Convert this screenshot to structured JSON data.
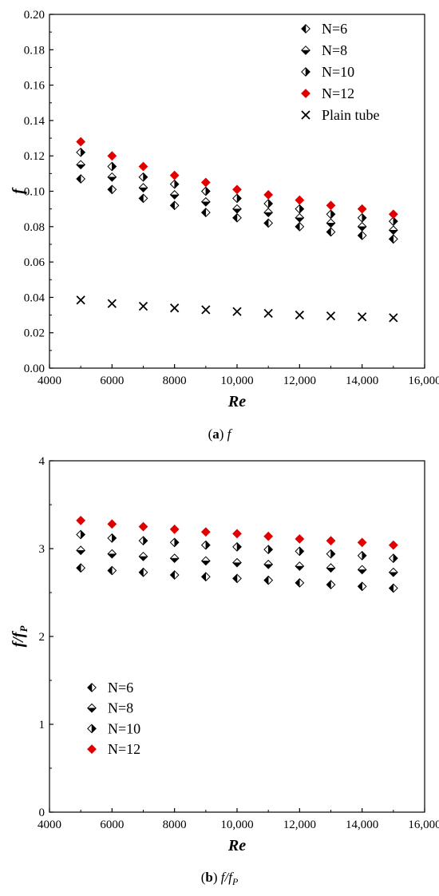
{
  "chart_data": [
    {
      "type": "scatter",
      "panel": "a",
      "caption": {
        "letter": "a",
        "text": "f"
      },
      "xlabel": "Re",
      "ylabel": "f",
      "xlim": [
        4000,
        16000
      ],
      "ylim": [
        0,
        0.2
      ],
      "x_ticks": [
        4000,
        6000,
        8000,
        10000,
        12000,
        14000,
        16000
      ],
      "x_tick_labels": [
        "4000",
        "6000",
        "8000",
        "10,000",
        "12,000",
        "14,000",
        "16,000"
      ],
      "y_ticks": [
        0,
        0.02,
        0.04,
        0.06,
        0.08,
        0.1,
        0.12,
        0.14,
        0.16,
        0.18,
        0.2
      ],
      "y_tick_labels": [
        "0.00",
        "0.02",
        "0.04",
        "0.06",
        "0.08",
        "0.10",
        "0.12",
        "0.14",
        "0.16",
        "0.18",
        "0.20"
      ],
      "legend_position": "top-right",
      "x": [
        5000,
        6000,
        7000,
        8000,
        9000,
        10000,
        11000,
        12000,
        13000,
        14000,
        15000
      ],
      "series": [
        {
          "name": "N=6",
          "marker": "diamond-left",
          "color": "#000000",
          "values": [
            0.107,
            0.101,
            0.096,
            0.092,
            0.088,
            0.085,
            0.082,
            0.08,
            0.077,
            0.075,
            0.073
          ]
        },
        {
          "name": "N=8",
          "marker": "diamond-bottom",
          "color": "#000000",
          "values": [
            0.115,
            0.108,
            0.102,
            0.098,
            0.094,
            0.09,
            0.088,
            0.085,
            0.082,
            0.08,
            0.078
          ]
        },
        {
          "name": "N=10",
          "marker": "diamond-right",
          "color": "#000000",
          "values": [
            0.122,
            0.114,
            0.108,
            0.104,
            0.1,
            0.096,
            0.093,
            0.09,
            0.087,
            0.085,
            0.083
          ]
        },
        {
          "name": "N=12",
          "marker": "diamond-filled",
          "color": "#e00000",
          "values": [
            0.128,
            0.12,
            0.114,
            0.109,
            0.105,
            0.101,
            0.098,
            0.095,
            0.092,
            0.09,
            0.087
          ]
        },
        {
          "name": "Plain tube",
          "marker": "cross",
          "color": "#000000",
          "values": [
            0.0385,
            0.0365,
            0.035,
            0.034,
            0.033,
            0.032,
            0.031,
            0.03,
            0.0295,
            0.029,
            0.0285
          ]
        }
      ]
    },
    {
      "type": "scatter",
      "panel": "b",
      "caption": {
        "letter": "b",
        "text": "f/f",
        "sub": "P"
      },
      "xlabel": "Re",
      "ylabel": "f/f",
      "ylabel_sub": "P",
      "xlim": [
        4000,
        16000
      ],
      "ylim": [
        0,
        4
      ],
      "x_ticks": [
        4000,
        6000,
        8000,
        10000,
        12000,
        14000,
        16000
      ],
      "x_tick_labels": [
        "4000",
        "6000",
        "8000",
        "10,000",
        "12,000",
        "14,000",
        "16,000"
      ],
      "y_ticks": [
        0,
        1,
        2,
        3,
        4
      ],
      "y_tick_labels": [
        "0",
        "1",
        "2",
        "3",
        "4"
      ],
      "legend_position": "bottom-left",
      "x": [
        5000,
        6000,
        7000,
        8000,
        9000,
        10000,
        11000,
        12000,
        13000,
        14000,
        15000
      ],
      "series": [
        {
          "name": "N=6",
          "marker": "diamond-left",
          "color": "#000000",
          "values": [
            2.78,
            2.75,
            2.73,
            2.7,
            2.68,
            2.66,
            2.64,
            2.61,
            2.59,
            2.57,
            2.55
          ]
        },
        {
          "name": "N=8",
          "marker": "diamond-bottom",
          "color": "#000000",
          "values": [
            2.98,
            2.94,
            2.91,
            2.89,
            2.86,
            2.84,
            2.82,
            2.8,
            2.78,
            2.76,
            2.73
          ]
        },
        {
          "name": "N=10",
          "marker": "diamond-right",
          "color": "#000000",
          "values": [
            3.16,
            3.12,
            3.09,
            3.07,
            3.04,
            3.02,
            2.99,
            2.97,
            2.94,
            2.92,
            2.89
          ]
        },
        {
          "name": "N=12",
          "marker": "diamond-filled",
          "color": "#e00000",
          "values": [
            3.32,
            3.28,
            3.25,
            3.22,
            3.19,
            3.17,
            3.14,
            3.11,
            3.09,
            3.07,
            3.04
          ]
        }
      ]
    }
  ]
}
